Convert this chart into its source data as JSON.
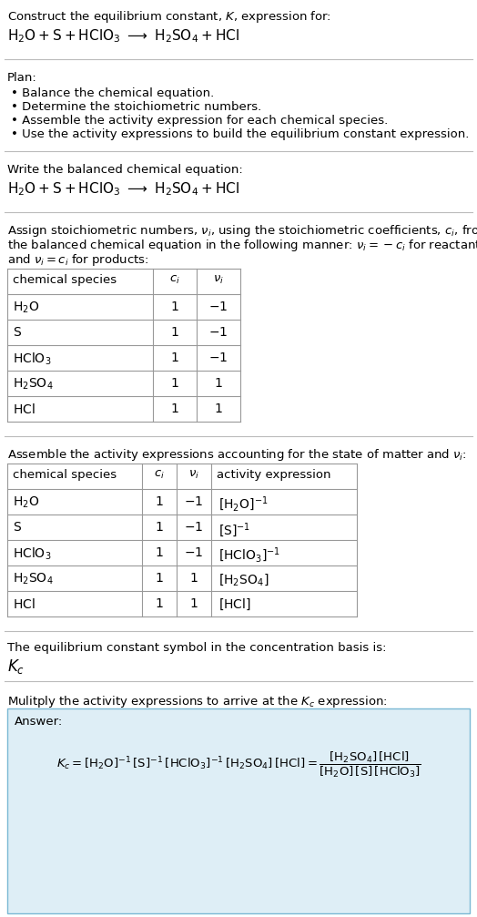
{
  "bg_color": "#ffffff",
  "light_blue_bg": "#deeef6",
  "table_border_color": "#aaaaaa",
  "title_line1": "Construct the equilibrium constant, $K$, expression for:",
  "plan_items": [
    "Balance the chemical equation.",
    "Determine the stoichiometric numbers.",
    "Assemble the activity expression for each chemical species.",
    "Use the activity expressions to build the equilibrium constant expression."
  ],
  "table1_data": [
    [
      "$\\mathrm{H_2O}$",
      "1",
      "$-1$"
    ],
    [
      "$\\mathrm{S}$",
      "1",
      "$-1$"
    ],
    [
      "$\\mathrm{HClO_3}$",
      "1",
      "$-1$"
    ],
    [
      "$\\mathrm{H_2SO_4}$",
      "1",
      "$1$"
    ],
    [
      "$\\mathrm{HCl}$",
      "1",
      "$1$"
    ]
  ],
  "table2_data": [
    [
      "$\\mathrm{H_2O}$",
      "1",
      "$-1$",
      "$[\\mathrm{H_2O}]^{-1}$"
    ],
    [
      "$\\mathrm{S}$",
      "1",
      "$-1$",
      "$[\\mathrm{S}]^{-1}$"
    ],
    [
      "$\\mathrm{HClO_3}$",
      "1",
      "$-1$",
      "$[\\mathrm{HClO_3}]^{-1}$"
    ],
    [
      "$\\mathrm{H_2SO_4}$",
      "1",
      "$1$",
      "$[\\mathrm{H_2SO_4}]$"
    ],
    [
      "$\\mathrm{HCl}$",
      "1",
      "$1$",
      "$[\\mathrm{HCl}]$"
    ]
  ]
}
